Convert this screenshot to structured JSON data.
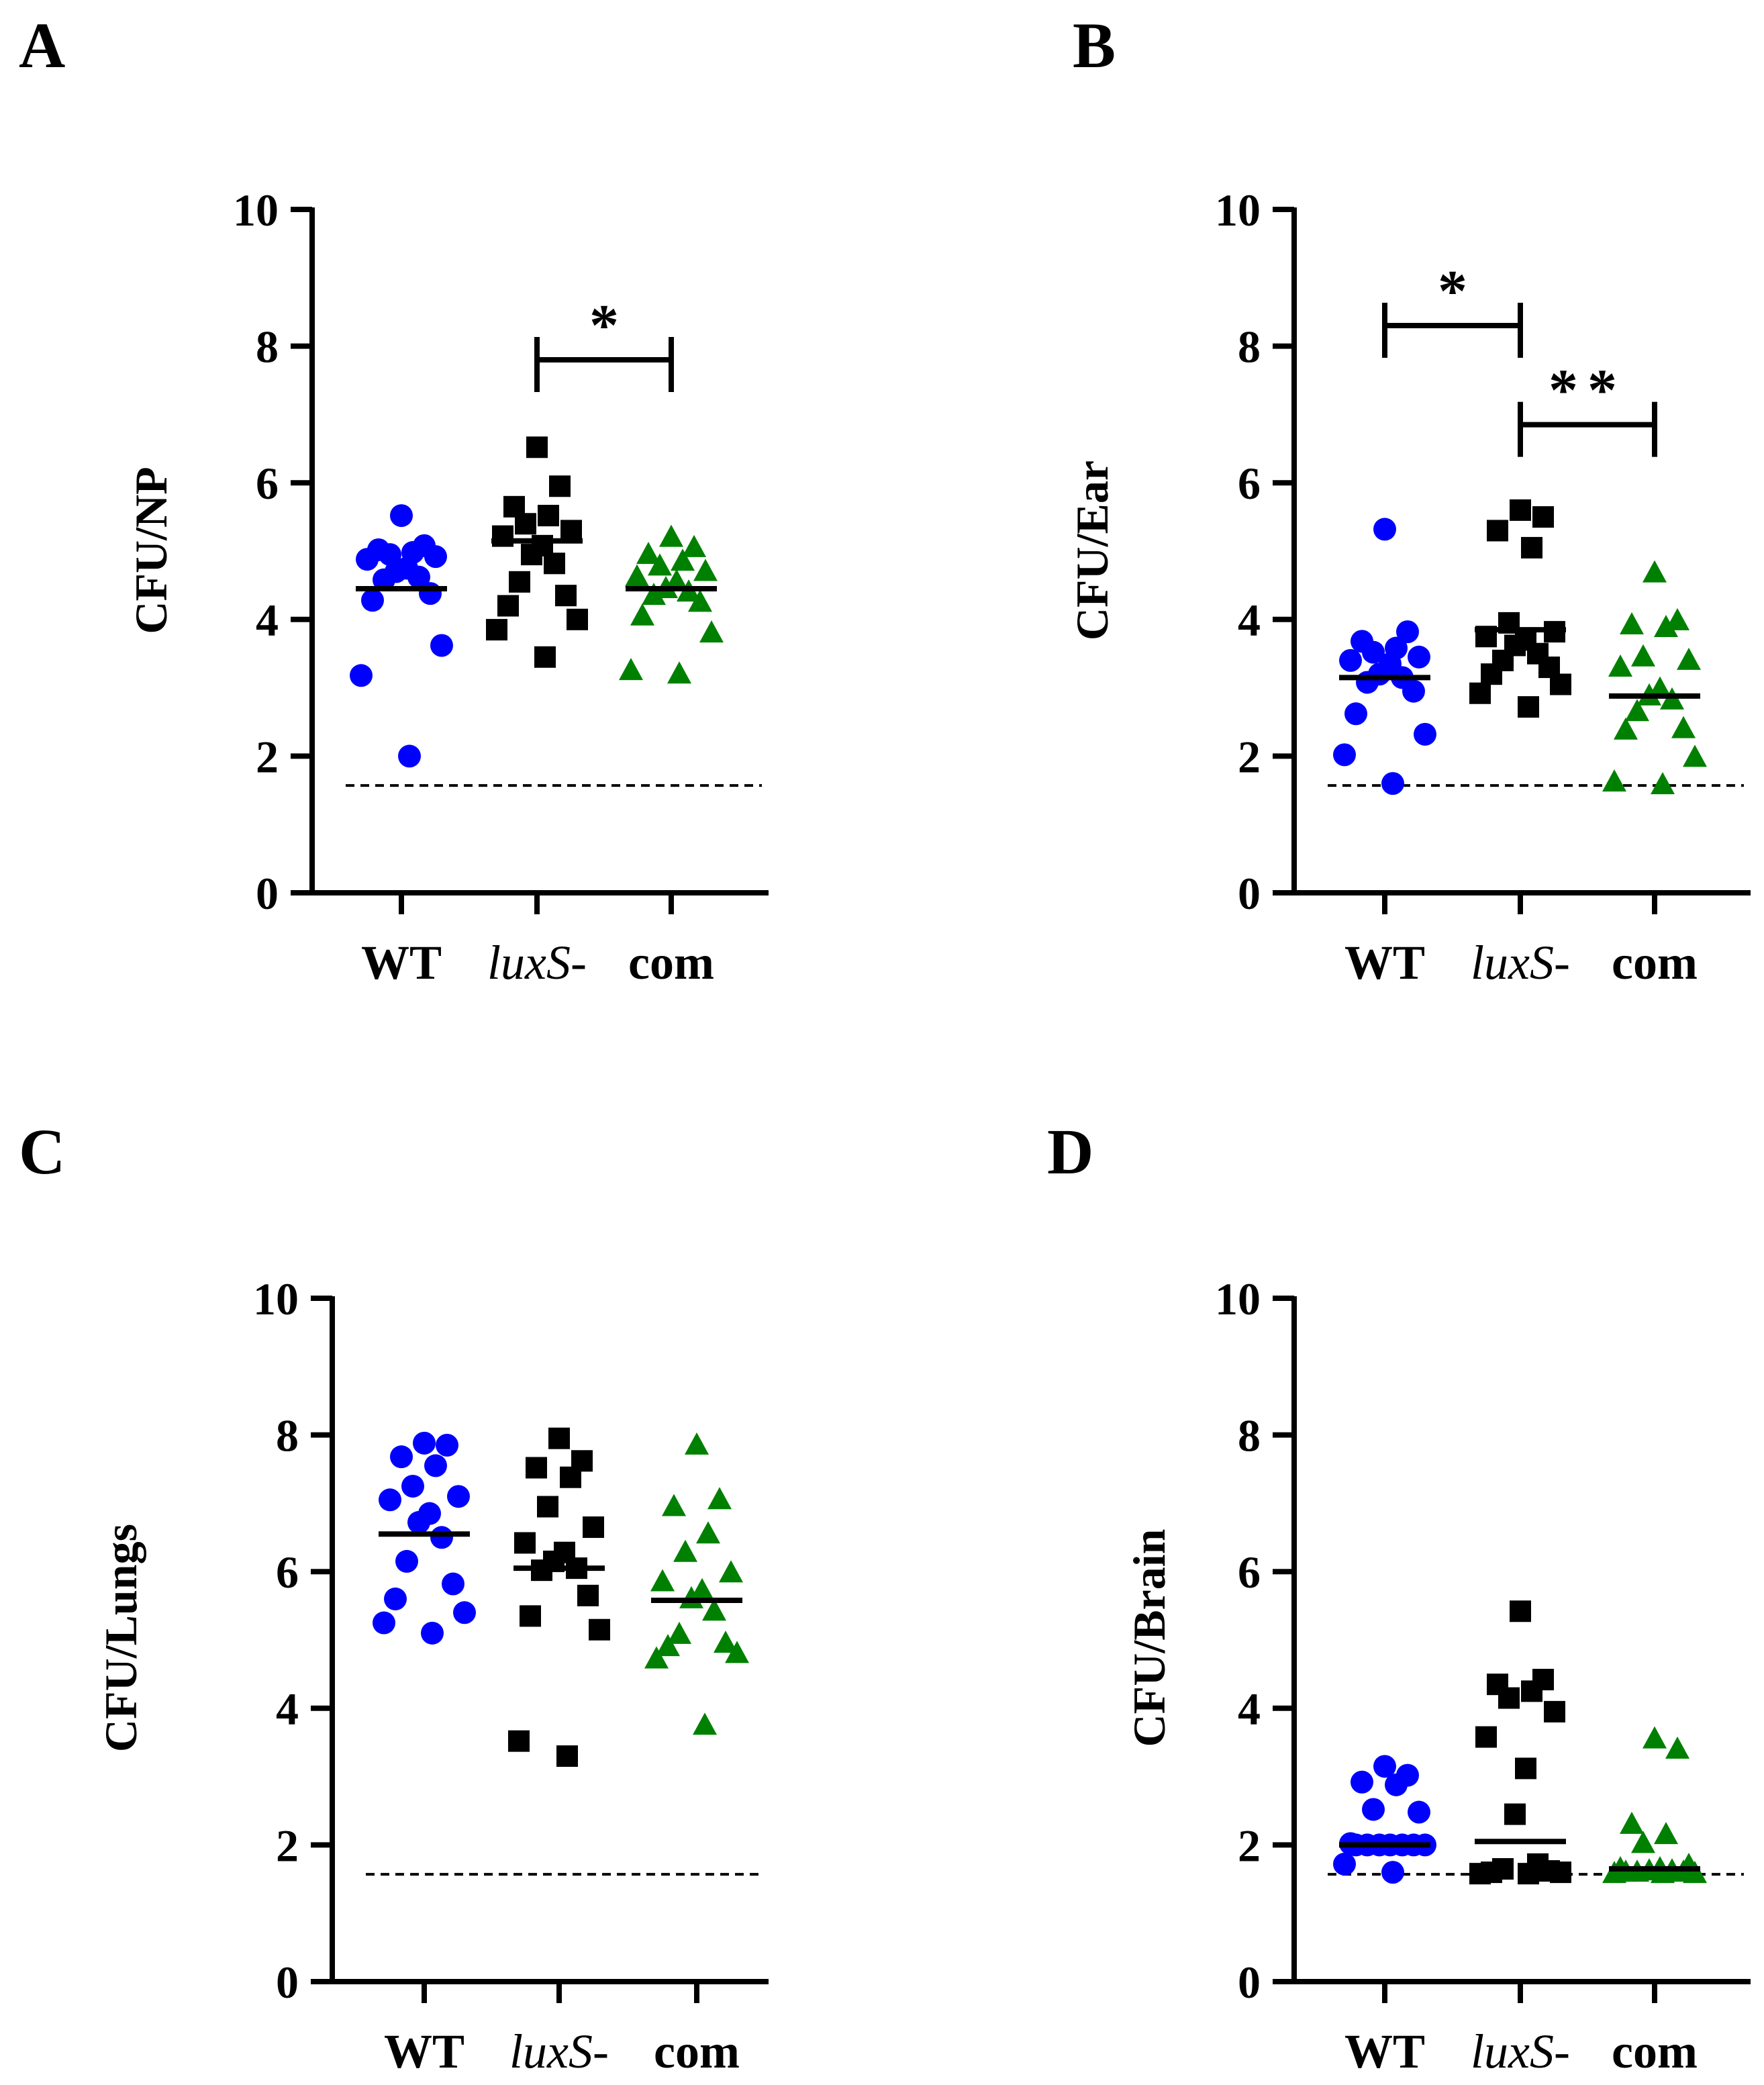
{
  "chart_data": [
    {
      "panel": "A",
      "type": "scatter",
      "ylabel": "CFU/NP",
      "ylim": [
        0,
        10
      ],
      "yticks": [
        0,
        2,
        4,
        6,
        8,
        10
      ],
      "categories": [
        "WT",
        "luxS-",
        "com"
      ],
      "detection_limit": 1.57,
      "series": [
        {
          "name": "WT",
          "marker": "circle",
          "color": "#0000ff",
          "mean": 4.45,
          "values": [
            5.52,
            5.08,
            5.02,
            4.98,
            4.95,
            4.92,
            4.88,
            4.75,
            4.7,
            4.62,
            4.58,
            4.38,
            4.28,
            3.62,
            3.18,
            2.0
          ]
        },
        {
          "name": "luxS-",
          "marker": "square",
          "color": "#000000",
          "mean": 5.15,
          "values": [
            6.52,
            5.95,
            5.65,
            5.52,
            5.4,
            5.3,
            5.22,
            5.08,
            4.95,
            4.82,
            4.55,
            4.35,
            4.2,
            4.0,
            3.85,
            3.45
          ]
        },
        {
          "name": "com",
          "marker": "triangle",
          "color": "#008000",
          "mean": 4.45,
          "values": [
            5.2,
            5.05,
            4.95,
            4.85,
            4.78,
            4.7,
            4.62,
            4.55,
            4.45,
            4.4,
            4.35,
            4.25,
            4.05,
            3.8,
            3.25,
            3.2
          ]
        }
      ],
      "annotations": [
        {
          "from": "luxS-",
          "to": "com",
          "y": 7.8,
          "label": "*"
        }
      ]
    },
    {
      "panel": "B",
      "type": "scatter",
      "ylabel": "CFU/Ear",
      "ylim": [
        0,
        10
      ],
      "yticks": [
        0,
        2,
        4,
        6,
        8,
        10
      ],
      "categories": [
        "WT",
        "luxS-",
        "com"
      ],
      "detection_limit": 1.57,
      "series": [
        {
          "name": "WT",
          "marker": "circle",
          "color": "#0000ff",
          "mean": 3.15,
          "values": [
            5.32,
            3.82,
            3.68,
            3.58,
            3.52,
            3.45,
            3.4,
            3.35,
            3.2,
            3.15,
            3.08,
            2.95,
            2.62,
            2.32,
            2.02,
            1.6
          ]
        },
        {
          "name": "luxS-",
          "marker": "square",
          "color": "#000000",
          "mean": 3.85,
          "values": [
            5.6,
            5.5,
            5.3,
            5.05,
            3.95,
            3.82,
            3.75,
            3.7,
            3.62,
            3.5,
            3.4,
            3.3,
            3.2,
            3.05,
            2.92,
            2.72
          ]
        },
        {
          "name": "com",
          "marker": "triangle",
          "color": "#008000",
          "mean": 2.88,
          "values": [
            4.68,
            3.98,
            3.92,
            3.88,
            3.45,
            3.4,
            3.3,
            2.98,
            2.88,
            2.82,
            2.65,
            2.4,
            2.38,
            1.98,
            1.62,
            1.58
          ]
        }
      ],
      "annotations": [
        {
          "from": "WT",
          "to": "luxS-",
          "y": 8.3,
          "label": "*"
        },
        {
          "from": "luxS-",
          "to": "com",
          "y": 6.85,
          "label": "**"
        }
      ]
    },
    {
      "panel": "C",
      "type": "scatter",
      "ylabel": "CFU/Lungs",
      "ylim": [
        0,
        10
      ],
      "yticks": [
        0,
        2,
        4,
        6,
        8,
        10
      ],
      "categories": [
        "WT",
        "luxS-",
        "com"
      ],
      "detection_limit": 1.57,
      "series": [
        {
          "name": "WT",
          "marker": "circle",
          "color": "#0000ff",
          "mean": 6.55,
          "values": [
            7.88,
            7.85,
            7.68,
            7.55,
            7.25,
            7.1,
            7.05,
            6.85,
            6.72,
            6.5,
            6.15,
            5.82,
            5.6,
            5.4,
            5.25,
            5.1
          ]
        },
        {
          "name": "luxS-",
          "marker": "square",
          "color": "#000000",
          "mean": 6.05,
          "values": [
            7.95,
            7.62,
            7.52,
            7.38,
            6.95,
            6.65,
            6.42,
            6.28,
            6.15,
            6.05,
            6.02,
            5.65,
            5.35,
            5.15,
            3.52,
            3.3
          ]
        },
        {
          "name": "com",
          "marker": "triangle",
          "color": "#008000",
          "mean": 5.58,
          "values": [
            7.85,
            7.05,
            6.95,
            6.55,
            6.28,
            5.98,
            5.85,
            5.72,
            5.6,
            5.42,
            5.08,
            4.95,
            4.9,
            4.8,
            4.72,
            3.75
          ]
        }
      ],
      "annotations": []
    },
    {
      "panel": "D",
      "type": "scatter",
      "ylabel": "CFU/Brain",
      "ylim": [
        0,
        10
      ],
      "yticks": [
        0,
        2,
        4,
        6,
        8,
        10
      ],
      "categories": [
        "WT",
        "luxS-",
        "com"
      ],
      "detection_limit": 1.57,
      "series": [
        {
          "name": "WT",
          "marker": "circle",
          "color": "#0000ff",
          "mean": 2.0,
          "values": [
            3.15,
            3.02,
            2.92,
            2.88,
            2.52,
            2.48,
            2.02,
            2.0,
            2.0,
            2.0,
            2.0,
            2.0,
            2.0,
            2.0,
            1.72,
            1.6
          ]
        },
        {
          "name": "luxS-",
          "marker": "square",
          "color": "#000000",
          "mean": 2.05,
          "values": [
            5.42,
            4.42,
            4.35,
            4.25,
            4.15,
            3.95,
            3.58,
            3.12,
            2.45,
            1.72,
            1.65,
            1.62,
            1.6,
            1.6,
            1.58,
            1.58
          ]
        },
        {
          "name": "com",
          "marker": "triangle",
          "color": "#008000",
          "mean": 1.65,
          "values": [
            3.55,
            3.4,
            2.3,
            2.15,
            2.02,
            1.7,
            1.65,
            1.65,
            1.62,
            1.62,
            1.6,
            1.6,
            1.6,
            1.58,
            1.58,
            1.58
          ]
        }
      ],
      "annotations": []
    }
  ]
}
